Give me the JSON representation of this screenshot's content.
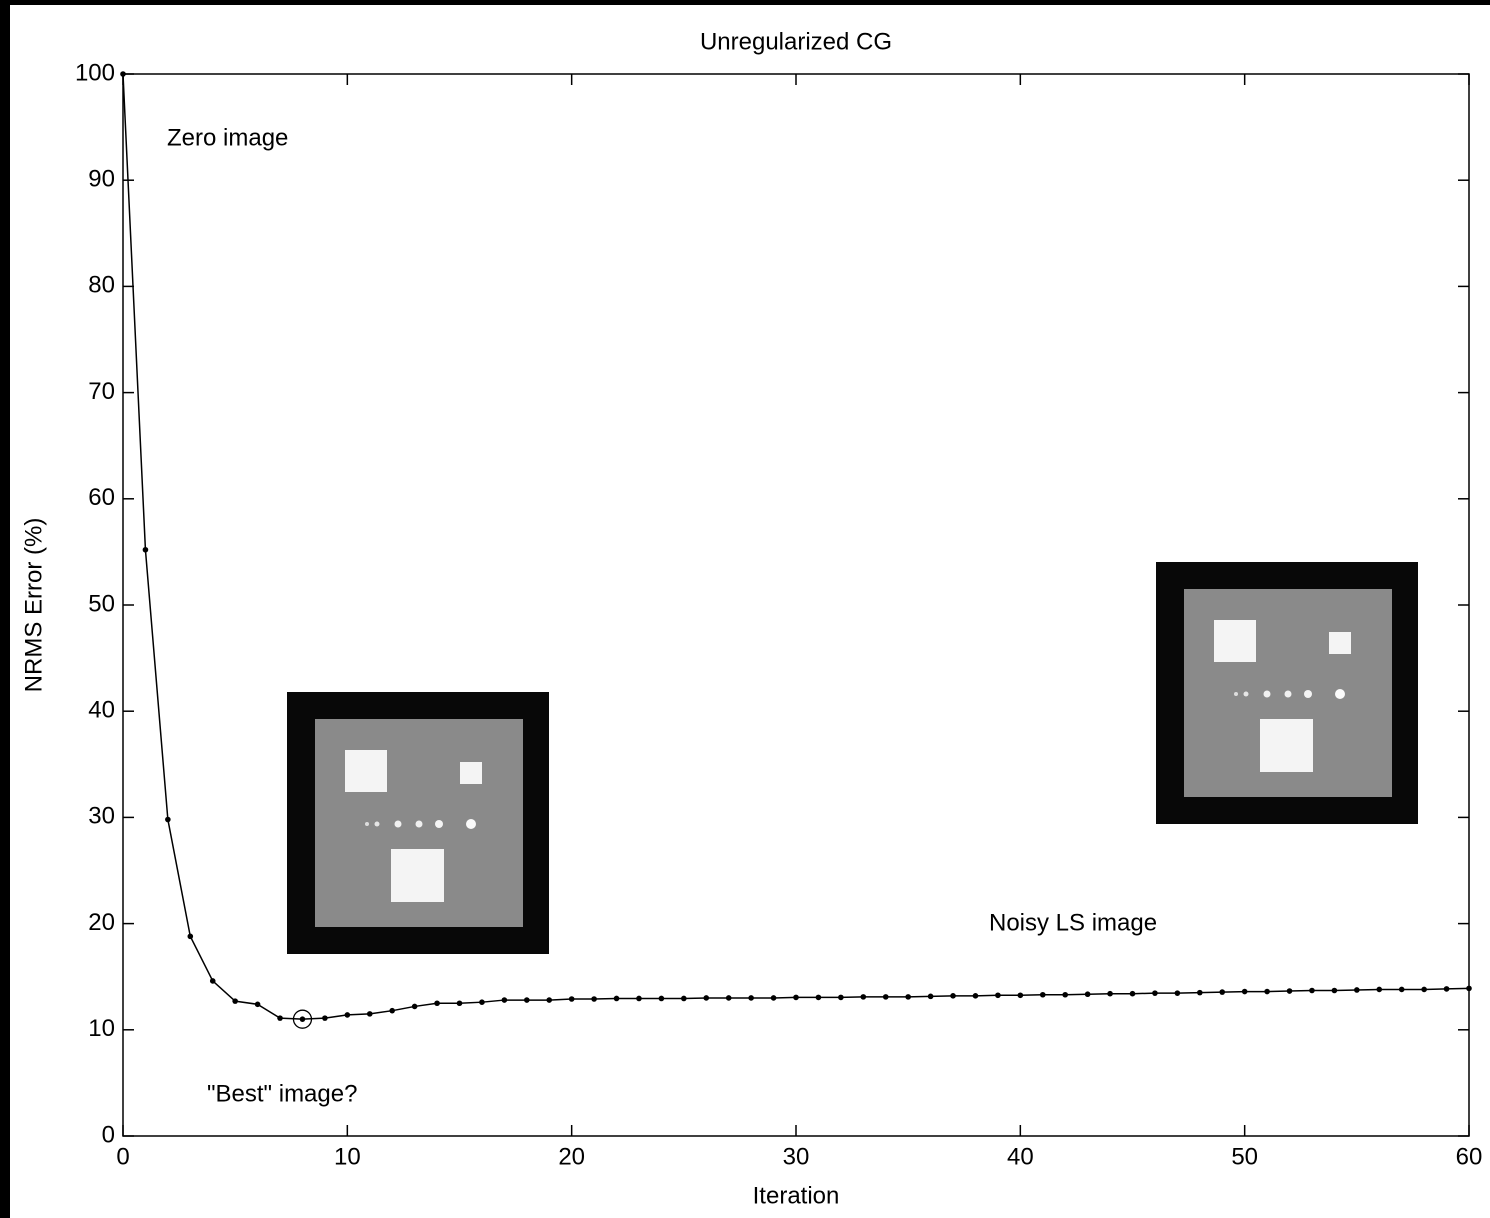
{
  "chart_data": {
    "type": "line",
    "title": "Unregularized CG",
    "x_label": "Iteration",
    "y_label": "NRMS Error (%)",
    "x": [
      0,
      1,
      2,
      3,
      4,
      5,
      6,
      7,
      8,
      9,
      10,
      11,
      12,
      13,
      14,
      15,
      16,
      17,
      18,
      19,
      20,
      21,
      22,
      23,
      24,
      25,
      26,
      27,
      28,
      29,
      30,
      31,
      32,
      33,
      34,
      35,
      36,
      37,
      38,
      39,
      40,
      41,
      42,
      43,
      44,
      45,
      46,
      47,
      48,
      49,
      50,
      51,
      52,
      53,
      54,
      55,
      56,
      57,
      58,
      59,
      60
    ],
    "values": [
      100,
      55.2,
      29.8,
      18.8,
      14.6,
      12.7,
      12.4,
      11.1,
      11.0,
      11.1,
      11.4,
      11.5,
      11.8,
      12.2,
      12.5,
      12.5,
      12.6,
      12.8,
      12.8,
      12.8,
      12.9,
      12.9,
      12.95,
      12.95,
      12.95,
      12.95,
      13.0,
      13.0,
      13.0,
      13.0,
      13.05,
      13.05,
      13.05,
      13.1,
      13.1,
      13.1,
      13.15,
      13.2,
      13.2,
      13.25,
      13.25,
      13.3,
      13.3,
      13.35,
      13.4,
      13.4,
      13.45,
      13.45,
      13.5,
      13.55,
      13.6,
      13.6,
      13.65,
      13.7,
      13.7,
      13.75,
      13.8,
      13.8,
      13.8,
      13.85,
      13.9
    ],
    "color": "#000000",
    "circled_point": 8,
    "xlim": [
      0,
      60
    ],
    "xticks": [
      0,
      10,
      20,
      30,
      40,
      50,
      60
    ],
    "ylim": [
      0,
      100
    ],
    "yticks": [
      0,
      10,
      20,
      30,
      40,
      50,
      60,
      70,
      80,
      90,
      100
    ],
    "grid": false,
    "annotations": [
      "Zero image",
      "\"Best\" image?",
      "Noisy LS image"
    ]
  }
}
